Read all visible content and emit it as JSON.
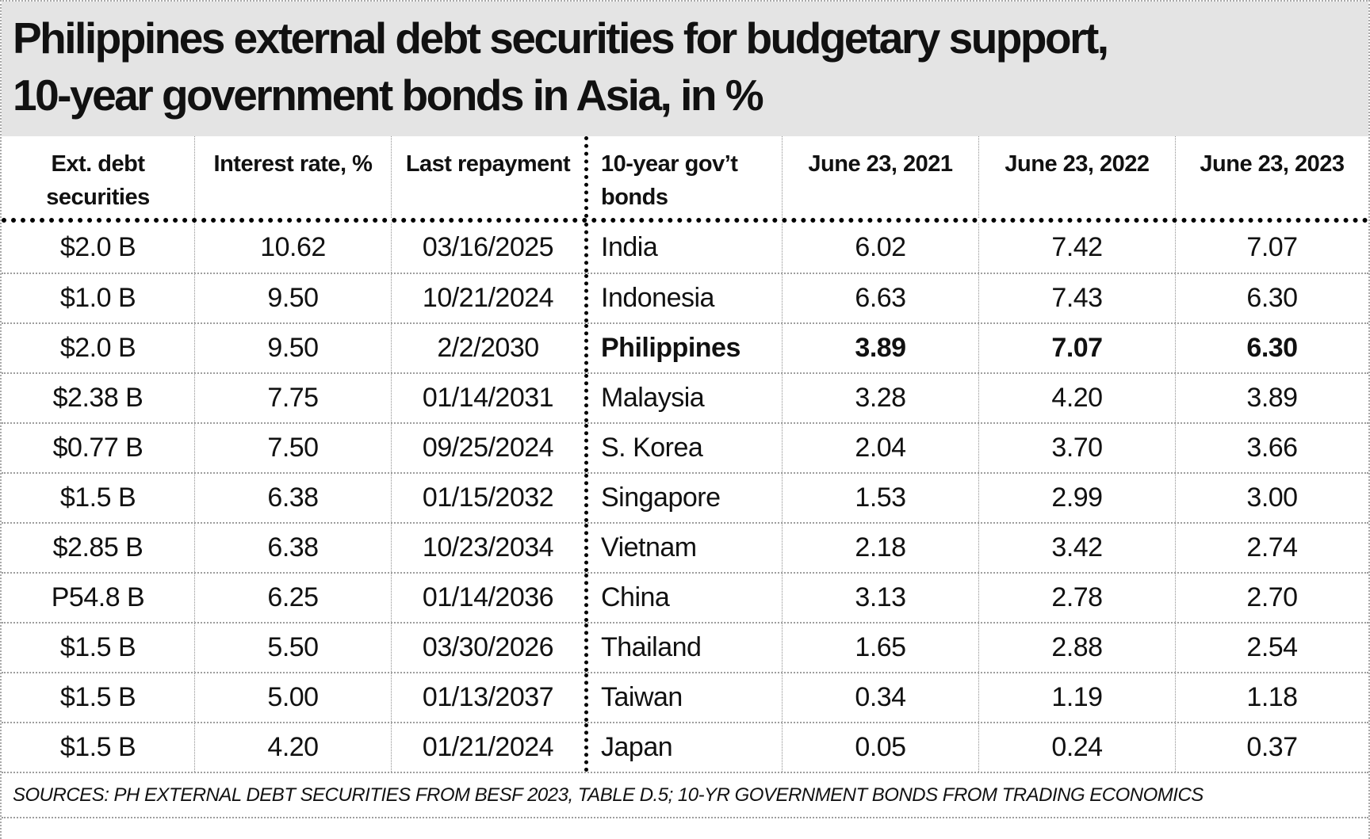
{
  "title": {
    "line1": "Philippines external debt securities for budgetary support,",
    "line2": "10-year government bonds in Asia, in %"
  },
  "colors": {
    "title_background": "#e4e4e4",
    "text": "#111111",
    "thick_border": "#000000",
    "thin_border": "#9e9e9e"
  },
  "chart_data": {
    "type": "table",
    "title": "Philippines external debt securities for budgetary support, 10-year government bonds in Asia, in %",
    "columns": [
      "Ext. debt securities",
      "Interest rate, %",
      "Last repayment",
      "10-year gov’t bonds",
      "June 23, 2021",
      "June 23, 2022",
      "June 23, 2023"
    ],
    "rows": [
      {
        "ext_debt": "$2.0 B",
        "interest_rate": "10.62",
        "last_repayment": "03/16/2025",
        "country": "India",
        "y2021": "6.02",
        "y2022": "7.42",
        "y2023": "7.07",
        "highlight": false
      },
      {
        "ext_debt": "$1.0 B",
        "interest_rate": "9.50",
        "last_repayment": "10/21/2024",
        "country": "Indonesia",
        "y2021": "6.63",
        "y2022": "7.43",
        "y2023": "6.30",
        "highlight": false
      },
      {
        "ext_debt": "$2.0 B",
        "interest_rate": "9.50",
        "last_repayment": "2/2/2030",
        "country": "Philippines",
        "y2021": "3.89",
        "y2022": "7.07",
        "y2023": "6.30",
        "highlight": true
      },
      {
        "ext_debt": "$2.38 B",
        "interest_rate": "7.75",
        "last_repayment": "01/14/2031",
        "country": "Malaysia",
        "y2021": "3.28",
        "y2022": "4.20",
        "y2023": "3.89",
        "highlight": false
      },
      {
        "ext_debt": "$0.77 B",
        "interest_rate": "7.50",
        "last_repayment": "09/25/2024",
        "country": "S. Korea",
        "y2021": "2.04",
        "y2022": "3.70",
        "y2023": "3.66",
        "highlight": false
      },
      {
        "ext_debt": "$1.5 B",
        "interest_rate": "6.38",
        "last_repayment": "01/15/2032",
        "country": "Singapore",
        "y2021": "1.53",
        "y2022": "2.99",
        "y2023": "3.00",
        "highlight": false
      },
      {
        "ext_debt": "$2.85 B",
        "interest_rate": "6.38",
        "last_repayment": "10/23/2034",
        "country": "Vietnam",
        "y2021": "2.18",
        "y2022": "3.42",
        "y2023": "2.74",
        "highlight": false
      },
      {
        "ext_debt": "P54.8 B",
        "interest_rate": "6.25",
        "last_repayment": "01/14/2036",
        "country": "China",
        "y2021": "3.13",
        "y2022": "2.78",
        "y2023": "2.70",
        "highlight": false
      },
      {
        "ext_debt": "$1.5 B",
        "interest_rate": "5.50",
        "last_repayment": "03/30/2026",
        "country": "Thailand",
        "y2021": "1.65",
        "y2022": "2.88",
        "y2023": "2.54",
        "highlight": false
      },
      {
        "ext_debt": "$1.5 B",
        "interest_rate": "5.00",
        "last_repayment": "01/13/2037",
        "country": "Taiwan",
        "y2021": "0.34",
        "y2022": "1.19",
        "y2023": "1.18",
        "highlight": false
      },
      {
        "ext_debt": "$1.5 B",
        "interest_rate": "4.20",
        "last_repayment": "01/21/2024",
        "country": "Japan",
        "y2021": "0.05",
        "y2022": "0.24",
        "y2023": "0.37",
        "highlight": false
      }
    ],
    "highlighted_row": "Philippines",
    "source_note": "SOURCES: PH EXTERNAL DEBT SECURITIES FROM BESF 2023, TABLE D.5; 10-YR GOVERNMENT BONDS FROM TRADING ECONOMICS"
  }
}
